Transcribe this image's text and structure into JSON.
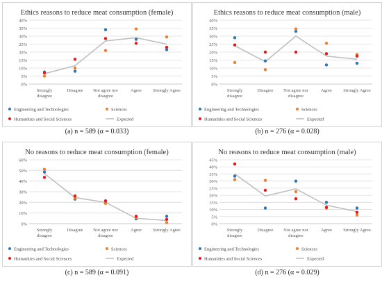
{
  "panels": [
    {
      "caption": "(a) n = 589 (α = 0.033)",
      "chart_data": {
        "type": "scatter",
        "title": "Ethics reasons to reduce meat consumption (female)",
        "categories": [
          "Strongly disagree",
          "Disagree",
          "Not agree nor disagree",
          "Agree",
          "Strongly Agree"
        ],
        "ylim": [
          0,
          40
        ],
        "yticks": [
          0,
          5,
          10,
          15,
          20,
          25,
          30,
          35,
          40
        ],
        "ytick_labels": [
          "0%",
          "5%",
          "10%",
          "15%",
          "20%",
          "25%",
          "30%",
          "35%",
          "40%"
        ],
        "grid": true,
        "legend_position": "bottom",
        "series": [
          {
            "name": "Engineering and Technologies",
            "kind": "points",
            "color": "#2e75b6",
            "values": [
              7.5,
              8,
              34,
              28,
              21.5
            ]
          },
          {
            "name": "Sciences",
            "kind": "points",
            "color": "#ed7d31",
            "values": [
              5,
              10,
              21,
              34.5,
              29.5
            ]
          },
          {
            "name": "Humanities and Social Sciences",
            "kind": "points",
            "color": "#e31a1c",
            "values": [
              7,
              15.5,
              28.5,
              25.5,
              23
            ]
          },
          {
            "name": "Expected",
            "kind": "line",
            "color": "#bfbfbf",
            "values": [
              6.5,
              11.5,
              27,
              29,
              25
            ]
          }
        ]
      }
    },
    {
      "caption": "(b) n = 276 (α = 0.028)",
      "chart_data": {
        "type": "scatter",
        "title": "Ethics reasons to reduce meat consumption (male)",
        "categories": [
          "Strongly disagree",
          "Disagree",
          "Not agree nor disagree",
          "Agree",
          "Strongly Agree"
        ],
        "ylim": [
          0,
          40
        ],
        "yticks": [
          0,
          5,
          10,
          15,
          20,
          25,
          30,
          35,
          40
        ],
        "ytick_labels": [
          "0%",
          "5%",
          "10%",
          "15%",
          "20%",
          "25%",
          "30%",
          "35%",
          "40%"
        ],
        "grid": true,
        "legend_position": "bottom",
        "series": [
          {
            "name": "Engineering and Technologies",
            "kind": "points",
            "color": "#2e75b6",
            "values": [
              29,
              14.5,
              33,
              12,
              13
            ]
          },
          {
            "name": "Sciences",
            "kind": "points",
            "color": "#ed7d31",
            "values": [
              13.5,
              9,
              34.5,
              25.5,
              18.5
            ]
          },
          {
            "name": "Humanities and Social Sciences",
            "kind": "points",
            "color": "#e31a1c",
            "values": [
              24.5,
              20,
              20,
              19,
              17.5
            ]
          },
          {
            "name": "Expected",
            "kind": "line",
            "color": "#bfbfbf",
            "values": [
              24,
              14,
              30,
              17.5,
              15.5
            ]
          }
        ]
      }
    },
    {
      "caption": "(c) n = 589 (α = 0.091)",
      "chart_data": {
        "type": "scatter",
        "title": "No reasons to reduce meat consumption (female)",
        "categories": [
          "Strongly disagree",
          "Disagree",
          "Not agree nor disagree",
          "Agree",
          "Strongly Agree"
        ],
        "ylim": [
          0,
          60
        ],
        "yticks": [
          0,
          10,
          20,
          30,
          40,
          50,
          60
        ],
        "ytick_labels": [
          "0%",
          "10%",
          "20%",
          "30%",
          "40%",
          "50%",
          "60%"
        ],
        "grid": true,
        "legend_position": "bottom",
        "series": [
          {
            "name": "Engineering and Technologies",
            "kind": "points",
            "color": "#2e75b6",
            "values": [
              48.5,
              23,
              19.5,
              4.5,
              7
            ]
          },
          {
            "name": "Sciences",
            "kind": "points",
            "color": "#ed7d31",
            "values": [
              51,
              24,
              19,
              5.5,
              1
            ]
          },
          {
            "name": "Humanities and Social Sciences",
            "kind": "points",
            "color": "#e31a1c",
            "values": [
              43.5,
              26,
              21.5,
              7,
              4
            ]
          },
          {
            "name": "Expected",
            "kind": "line",
            "color": "#bfbfbf",
            "values": [
              47,
              24.5,
              20,
              5,
              3
            ]
          }
        ]
      }
    },
    {
      "caption": "(d) n = 276 (α = 0.029)",
      "chart_data": {
        "type": "scatter",
        "title": "No reasons to reduce meat consumption (male)",
        "categories": [
          "Strongly disagree",
          "Disagree",
          "Not agree nor disagree",
          "Agree",
          "Strongly Agree"
        ],
        "ylim": [
          0,
          45
        ],
        "yticks": [
          0,
          5,
          10,
          15,
          20,
          25,
          30,
          35,
          40,
          45
        ],
        "ytick_labels": [
          "0%",
          "5%",
          "10%",
          "15%",
          "20%",
          "25%",
          "30%",
          "35%",
          "40%",
          "45%"
        ],
        "grid": true,
        "legend_position": "bottom",
        "series": [
          {
            "name": "Engineering and Technologies",
            "kind": "points",
            "color": "#2e75b6",
            "values": [
              33.5,
              11,
              30,
              15,
              11
            ]
          },
          {
            "name": "Sciences",
            "kind": "points",
            "color": "#ed7d31",
            "values": [
              31,
              30.5,
              22.5,
              11,
              6
            ]
          },
          {
            "name": "Humanities and Social Sciences",
            "kind": "points",
            "color": "#e31a1c",
            "values": [
              42,
              23.5,
              17.5,
              11.5,
              8
            ]
          },
          {
            "name": "Expected",
            "kind": "line",
            "color": "#bfbfbf",
            "values": [
              35,
              19.5,
              24.5,
              13,
              8.5
            ]
          }
        ]
      }
    }
  ]
}
